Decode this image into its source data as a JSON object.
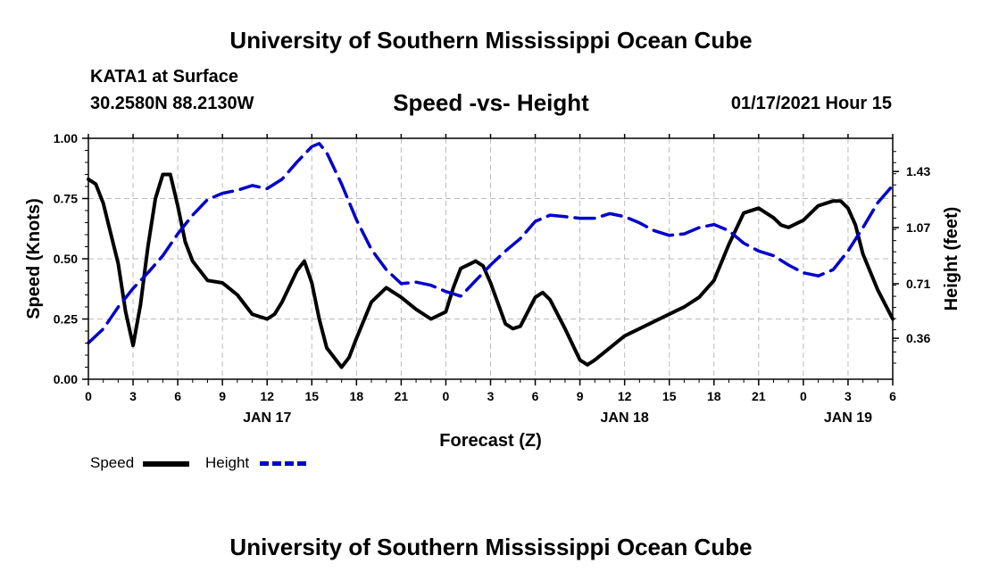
{
  "header": {
    "title": "University of Southern Mississippi Ocean Cube",
    "station": "KATA1 at Surface",
    "coords": "30.2580N 88.2130W",
    "subtitle": "Speed -vs- Height",
    "datetime": "01/17/2021 Hour 15"
  },
  "footer": {
    "title": "University of Southern Mississippi Ocean Cube"
  },
  "legend": {
    "speed_label": "Speed",
    "height_label": "Height",
    "speed_color": "#000000",
    "height_color": "#0000cc"
  },
  "chart_data": {
    "type": "line",
    "title": "Speed -vs- Height",
    "xlabel": "Forecast (Z)",
    "ylabel": "Speed (Knots)",
    "y2label": "Height (feet)",
    "x_range": [
      0,
      54
    ],
    "ylim": [
      0,
      1
    ],
    "y2lim": [
      0.097,
      1.643
    ],
    "x_ticks": [
      0,
      3,
      6,
      9,
      12,
      15,
      18,
      21,
      24,
      27,
      30,
      33,
      36,
      39,
      42,
      45,
      48,
      51,
      54
    ],
    "x_tick_labels": [
      "0",
      "3",
      "6",
      "9",
      "12",
      "15",
      "18",
      "21",
      "0",
      "3",
      "6",
      "9",
      "12",
      "15",
      "18",
      "21",
      "0",
      "3",
      "6"
    ],
    "day_labels": [
      {
        "x": 12,
        "label": "JAN 17"
      },
      {
        "x": 36,
        "label": "JAN 18"
      },
      {
        "x": 51,
        "label": "JAN 19"
      }
    ],
    "y_ticks": [
      0,
      0.25,
      0.5,
      0.75,
      1.0
    ],
    "y_tick_labels": [
      "0.00",
      "0.25",
      "0.50",
      "0.75",
      "1.00"
    ],
    "y2_ticks": [
      0.36,
      0.71,
      1.07,
      1.43
    ],
    "y2_tick_labels": [
      "0.36",
      "0.71",
      "1.07",
      "1.43"
    ],
    "grid": true,
    "series": [
      {
        "name": "Speed",
        "axis": "left",
        "color": "#000000",
        "style": "solid",
        "x": [
          0,
          0.5,
          1,
          2,
          2.5,
          3,
          3.5,
          4,
          4.5,
          5,
          5.5,
          6,
          6.5,
          7,
          8,
          9,
          10,
          11,
          12,
          12.5,
          13,
          14,
          14.5,
          15,
          15.5,
          16,
          17,
          17.5,
          18,
          19,
          20,
          21,
          22,
          23,
          24,
          24.5,
          25,
          26,
          26.5,
          27,
          28,
          28.5,
          29,
          30,
          30.5,
          31,
          32,
          33,
          33.5,
          34,
          35,
          36,
          37,
          38,
          39,
          40,
          41,
          42,
          43,
          44,
          45,
          46,
          46.5,
          47,
          48,
          49,
          50,
          50.5,
          51,
          51.5,
          52,
          53,
          54
        ],
        "values": [
          0.83,
          0.81,
          0.73,
          0.48,
          0.28,
          0.14,
          0.31,
          0.55,
          0.75,
          0.85,
          0.85,
          0.72,
          0.57,
          0.49,
          0.41,
          0.4,
          0.35,
          0.27,
          0.25,
          0.27,
          0.32,
          0.45,
          0.49,
          0.4,
          0.25,
          0.13,
          0.05,
          0.09,
          0.17,
          0.32,
          0.38,
          0.34,
          0.29,
          0.25,
          0.28,
          0.38,
          0.46,
          0.49,
          0.47,
          0.4,
          0.23,
          0.21,
          0.22,
          0.34,
          0.36,
          0.33,
          0.21,
          0.08,
          0.06,
          0.08,
          0.13,
          0.18,
          0.21,
          0.24,
          0.27,
          0.3,
          0.34,
          0.41,
          0.56,
          0.69,
          0.71,
          0.67,
          0.64,
          0.63,
          0.66,
          0.72,
          0.74,
          0.74,
          0.71,
          0.64,
          0.52,
          0.37,
          0.25
        ]
      },
      {
        "name": "Height",
        "axis": "right",
        "color": "#0000cc",
        "style": "dashed",
        "x": [
          0,
          1,
          2,
          3,
          4,
          5,
          6,
          7,
          8,
          9,
          10,
          11,
          12,
          13,
          14,
          15,
          15.5,
          16,
          17,
          18,
          19,
          20,
          21,
          22,
          23,
          24,
          25,
          26,
          27,
          28,
          29,
          30,
          31,
          32,
          33,
          34,
          35,
          36,
          37,
          38,
          39,
          40,
          41,
          42,
          43,
          44,
          45,
          46,
          47,
          48,
          49,
          50,
          51,
          52,
          53,
          54
        ],
        "values": [
          0.33,
          0.42,
          0.56,
          0.68,
          0.78,
          0.89,
          1.03,
          1.15,
          1.25,
          1.29,
          1.31,
          1.34,
          1.32,
          1.38,
          1.49,
          1.59,
          1.61,
          1.55,
          1.35,
          1.12,
          0.93,
          0.8,
          0.71,
          0.72,
          0.7,
          0.66,
          0.63,
          0.73,
          0.83,
          0.92,
          1.0,
          1.11,
          1.15,
          1.14,
          1.13,
          1.13,
          1.16,
          1.14,
          1.1,
          1.05,
          1.02,
          1.03,
          1.07,
          1.09,
          1.05,
          0.97,
          0.92,
          0.89,
          0.83,
          0.78,
          0.76,
          0.8,
          0.92,
          1.07,
          1.23,
          1.34
        ]
      }
    ]
  }
}
